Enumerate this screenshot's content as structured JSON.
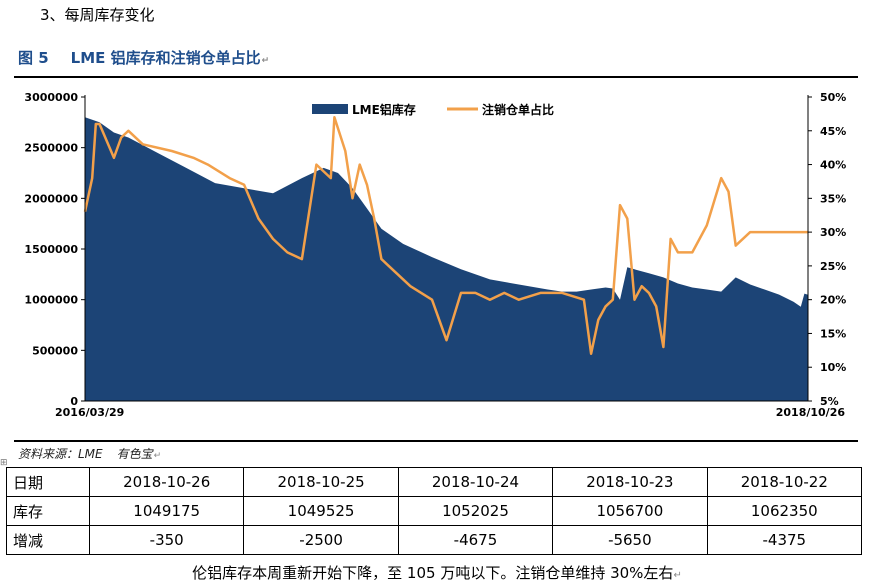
{
  "section_heading": "3、每周库存变化",
  "figure": {
    "number": "图 5",
    "title": "LME 铝库存和注销仓单占比"
  },
  "source": {
    "text": "资料来源：LME",
    "vendor": "有色宝"
  },
  "chart_data": {
    "type": "area+line",
    "left_axis": {
      "min": 0,
      "max": 3000000,
      "ticks": [
        "0",
        "500000",
        "1000000",
        "1500000",
        "2000000",
        "2500000",
        "3000000"
      ]
    },
    "right_axis": {
      "min": 5,
      "max": 50,
      "unit": "%",
      "ticks": [
        "5%",
        "10%",
        "15%",
        "20%",
        "25%",
        "30%",
        "35%",
        "40%",
        "45%",
        "50%"
      ]
    },
    "x_labels": {
      "start": "2016/03/29",
      "end": "2018/10/26"
    },
    "legend": [
      "LME铝库存",
      "注销仓单占比"
    ],
    "colors": {
      "stock": "#1c4476",
      "ratio": "#f2a04a"
    },
    "series_stock": {
      "name": "LME铝库存",
      "x": [
        0.0,
        0.02,
        0.04,
        0.06,
        0.1,
        0.14,
        0.18,
        0.22,
        0.26,
        0.3,
        0.33,
        0.35,
        0.37,
        0.39,
        0.41,
        0.44,
        0.48,
        0.52,
        0.56,
        0.6,
        0.64,
        0.66,
        0.68,
        0.7,
        0.72,
        0.73,
        0.74,
        0.75,
        0.76,
        0.78,
        0.8,
        0.82,
        0.84,
        0.86,
        0.88,
        0.9,
        0.92,
        0.94,
        0.96,
        0.98,
        0.99,
        0.995,
        1.0
      ],
      "values": [
        2800000,
        2750000,
        2650000,
        2600000,
        2450000,
        2300000,
        2150000,
        2100000,
        2050000,
        2200000,
        2300000,
        2250000,
        2100000,
        1900000,
        1700000,
        1550000,
        1420000,
        1300000,
        1200000,
        1150000,
        1100000,
        1080000,
        1080000,
        1100000,
        1120000,
        1110000,
        1000000,
        1320000,
        1300000,
        1260000,
        1220000,
        1160000,
        1120000,
        1100000,
        1080000,
        1220000,
        1150000,
        1100000,
        1050000,
        980000,
        930000,
        1060000,
        1049175
      ]
    },
    "series_ratio": {
      "name": "注销仓单占比",
      "x": [
        0.0,
        0.01,
        0.015,
        0.02,
        0.04,
        0.05,
        0.06,
        0.08,
        0.12,
        0.15,
        0.17,
        0.2,
        0.22,
        0.24,
        0.26,
        0.28,
        0.3,
        0.32,
        0.34,
        0.345,
        0.36,
        0.37,
        0.38,
        0.39,
        0.4,
        0.41,
        0.42,
        0.45,
        0.48,
        0.5,
        0.52,
        0.54,
        0.56,
        0.58,
        0.6,
        0.63,
        0.66,
        0.69,
        0.7,
        0.71,
        0.72,
        0.73,
        0.74,
        0.75,
        0.76,
        0.77,
        0.78,
        0.79,
        0.8,
        0.81,
        0.82,
        0.84,
        0.86,
        0.88,
        0.89,
        0.9,
        0.92,
        0.94,
        0.96,
        0.97,
        0.98,
        0.99,
        1.0
      ],
      "values": [
        33,
        38,
        46,
        46,
        41,
        44,
        45,
        43,
        42,
        41,
        40,
        38,
        37,
        32,
        29,
        27,
        26,
        40,
        38,
        47,
        42,
        35,
        40,
        37,
        32,
        26,
        25,
        22,
        20,
        14,
        21,
        21,
        20,
        21,
        20,
        21,
        21,
        20,
        12,
        17,
        19,
        20,
        34,
        32,
        20,
        22,
        21,
        19,
        13,
        29,
        27,
        27,
        31,
        38,
        36,
        28,
        30,
        30,
        30,
        30,
        30,
        30,
        30
      ]
    }
  },
  "table": {
    "rows": [
      {
        "label": "日期",
        "values": [
          "2018-10-26",
          "2018-10-25",
          "2018-10-24",
          "2018-10-23",
          "2018-10-22"
        ]
      },
      {
        "label": "库存",
        "values": [
          "1049175",
          "1049525",
          "1052025",
          "1056700",
          "1062350"
        ]
      },
      {
        "label": "增减",
        "values": [
          "-350",
          "-2500",
          "-4675",
          "-5650",
          "-4375"
        ]
      }
    ]
  },
  "summary": "伦铝库存本周重新开始下降，至 105 万吨以下。注销仓单维持 30%左右"
}
